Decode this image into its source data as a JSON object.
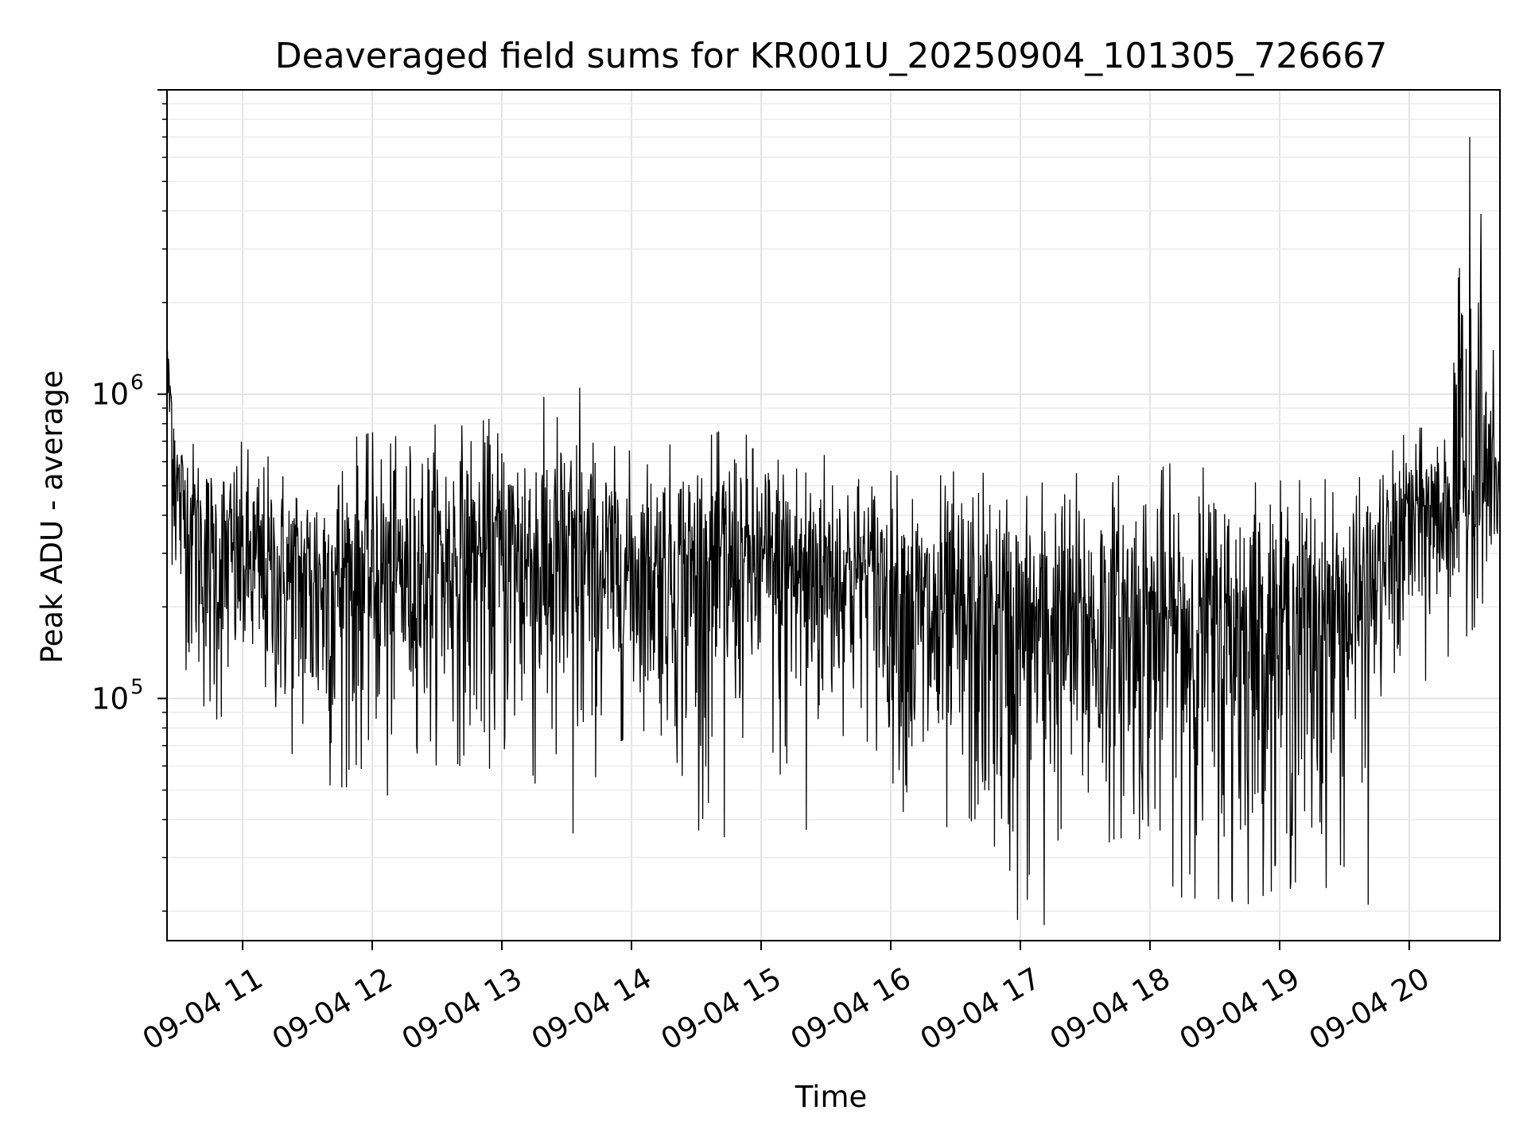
{
  "chart_data": {
    "type": "line",
    "title": "Deaveraged field sums for KR001U_20250904_101305_726667",
    "xlabel": "Time",
    "ylabel": "Peak ADU - average",
    "x_ticks": [
      "09-04 11",
      "09-04 12",
      "09-04 13",
      "09-04 14",
      "09-04 15",
      "09-04 16",
      "09-04 17",
      "09-04 18",
      "09-04 19",
      "09-04 20"
    ],
    "y_ticks": [
      {
        "base": "10",
        "exp": "5"
      },
      {
        "base": "10",
        "exp": "6"
      }
    ],
    "y_scale": "log",
    "ylim": [
      16000,
      10000000
    ],
    "xlim": [
      "2025-09-04 10:25",
      "2025-09-04 20:42"
    ],
    "grid": true,
    "line_color": "#000000",
    "series": [
      {
        "name": "",
        "x": [
          "10:25",
          "10:30",
          "10:45",
          "11:00",
          "11:15",
          "11:30",
          "11:45",
          "12:00",
          "12:15",
          "12:30",
          "12:45",
          "13:00",
          "13:15",
          "13:30",
          "13:45",
          "14:00",
          "14:15",
          "14:30",
          "14:45",
          "15:00",
          "15:15",
          "15:30",
          "15:45",
          "16:00",
          "16:15",
          "16:30",
          "16:45",
          "17:00",
          "17:15",
          "17:30",
          "17:45",
          "18:00",
          "18:15",
          "18:30",
          "18:45",
          "19:00",
          "19:15",
          "19:30",
          "19:45",
          "20:00",
          "20:15",
          "20:30",
          "20:42"
        ],
        "typical": [
          1400000,
          500000,
          300000,
          290000,
          250000,
          250000,
          260000,
          270000,
          260000,
          290000,
          290000,
          300000,
          290000,
          300000,
          280000,
          270000,
          275000,
          280000,
          280000,
          275000,
          275000,
          280000,
          260000,
          250000,
          190000,
          180000,
          175000,
          175000,
          180000,
          175000,
          180000,
          180000,
          175000,
          180000,
          180000,
          185000,
          190000,
          200000,
          250000,
          420000,
          450000,
          500000,
          480000
        ],
        "high": [
          1500000,
          800000,
          650000,
          700000,
          620000,
          600000,
          700000,
          750000,
          720000,
          800000,
          800000,
          850000,
          1050000,
          830000,
          700000,
          650000,
          680000,
          700000,
          780000,
          700000,
          700000,
          650000,
          600000,
          560000,
          520000,
          560000,
          550000,
          500000,
          550000,
          550000,
          560000,
          580000,
          600000,
          560000,
          560000,
          520000,
          530000,
          520000,
          550000,
          780000,
          770000,
          7000000,
          800000
        ],
        "low": [
          400000,
          150000,
          70000,
          100000,
          80000,
          55000,
          48000,
          65000,
          70000,
          60000,
          60000,
          58000,
          48000,
          36000,
          58000,
          80000,
          75000,
          35000,
          70000,
          80000,
          37000,
          70000,
          80000,
          55000,
          28000,
          30000,
          28000,
          18000,
          35000,
          30000,
          35000,
          30000,
          22000,
          22000,
          21000,
          24000,
          21000,
          28000,
          90000,
          100000,
          130000,
          170000,
          300000
        ],
        "spikes": [
          {
            "x": "11:46",
            "y": 51000
          },
          {
            "x": "12:07",
            "y": 48000
          },
          {
            "x": "13:33",
            "y": 36000
          },
          {
            "x": "14:43",
            "y": 35000
          },
          {
            "x": "15:21",
            "y": 37000
          },
          {
            "x": "13:36",
            "y": 1050000
          },
          {
            "x": "17:11",
            "y": 18000
          },
          {
            "x": "18:38",
            "y": 22000
          },
          {
            "x": "19:41",
            "y": 21000
          },
          {
            "x": "20:28",
            "y": 7000000
          },
          {
            "x": "20:32",
            "y": 2000000
          },
          {
            "x": "20:31",
            "y": 1200000
          }
        ]
      }
    ]
  }
}
